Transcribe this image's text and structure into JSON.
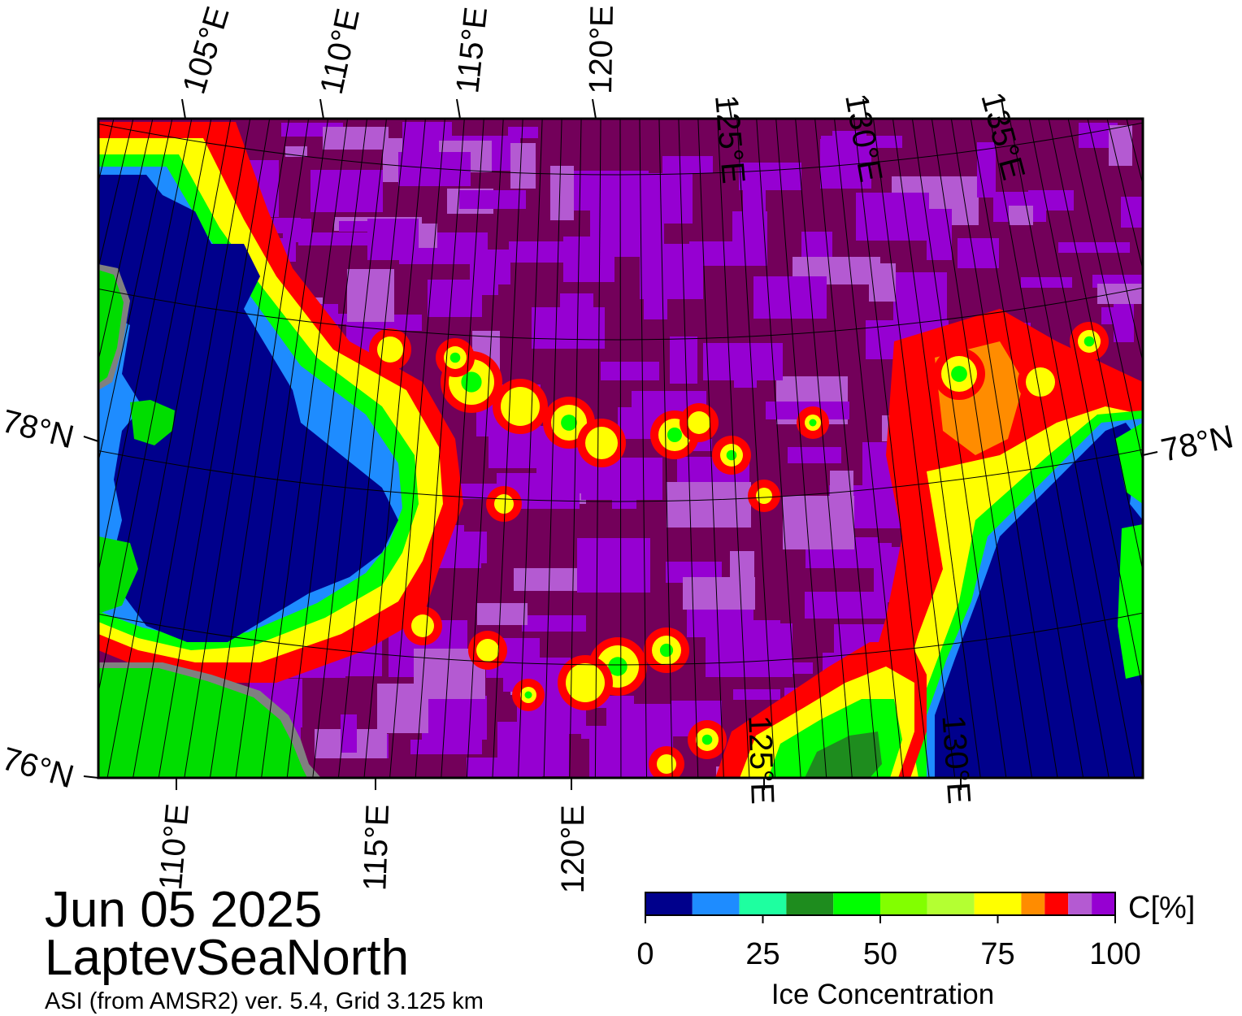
{
  "header": {
    "date": "Jun 05 2025",
    "region": "LaptevSeaNorth",
    "product": "ASI (from AMSR2) ver. 5.4,  Grid 3.125 km"
  },
  "map": {
    "top_longitude_labels": [
      "105°E",
      "110°E",
      "115°E",
      "120°E",
      "125°E",
      "130°E",
      "135°E"
    ],
    "bottom_longitude_labels": [
      "110°E",
      "115°E",
      "120°E",
      "125°E",
      "130°E"
    ],
    "latitude_labels_left": [
      "78°N",
      "76°N"
    ],
    "latitude_labels_right": [
      "78°N"
    ],
    "colors": {
      "open_water": "#00008c",
      "land": "#00dd00",
      "land_shadow": "#808080",
      "high_ice": "#73005a",
      "ice_purple": "#9600d2",
      "ice_lilac": "#b45ad2"
    }
  },
  "legend": {
    "title": "Ice Concentration",
    "unit": "C[%]",
    "tick_labels": [
      "0",
      "25",
      "50",
      "75",
      "100"
    ],
    "bins": [
      {
        "from": 0,
        "to": 10,
        "color": "#00008c"
      },
      {
        "from": 10,
        "to": 20,
        "color": "#1e8cff"
      },
      {
        "from": 20,
        "to": 30,
        "color": "#1effa0"
      },
      {
        "from": 30,
        "to": 40,
        "color": "#1e8c1e"
      },
      {
        "from": 40,
        "to": 50,
        "color": "#00ff00"
      },
      {
        "from": 50,
        "to": 60,
        "color": "#82ff00"
      },
      {
        "from": 60,
        "to": 70,
        "color": "#b4ff32"
      },
      {
        "from": 70,
        "to": 80,
        "color": "#ffff00"
      },
      {
        "from": 80,
        "to": 85,
        "color": "#ff8c00"
      },
      {
        "from": 85,
        "to": 90,
        "color": "#ff0000"
      },
      {
        "from": 90,
        "to": 95,
        "color": "#b45ad2"
      },
      {
        "from": 95,
        "to": 100,
        "color": "#9600d2"
      }
    ]
  }
}
